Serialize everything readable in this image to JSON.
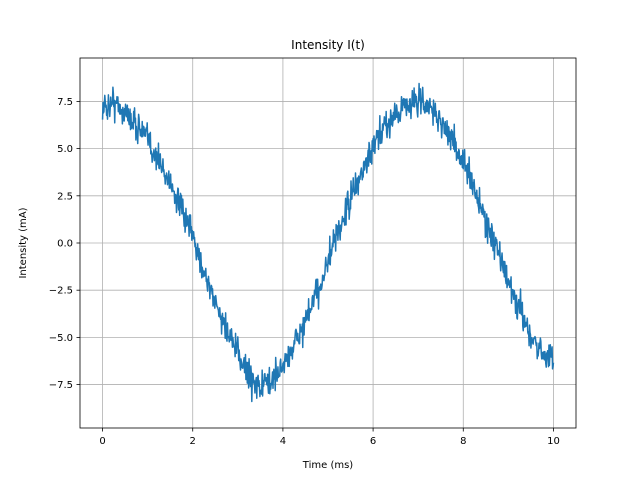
{
  "chart_data": {
    "type": "line",
    "title": "Intensity I(t)",
    "xlabel": "Time (ms)",
    "ylabel": "Intensity (mA)",
    "xlim": [
      -0.5,
      10.5
    ],
    "ylim": [
      -9.8,
      9.8
    ],
    "grid": true,
    "x_ticks": [
      0,
      2,
      4,
      6,
      8,
      10
    ],
    "x_tick_labels": [
      "0",
      "2",
      "4",
      "6",
      "8",
      "10"
    ],
    "y_ticks": [
      -7.5,
      -5.0,
      -2.5,
      0.0,
      2.5,
      5.0,
      7.5
    ],
    "y_tick_labels": [
      "−7.5",
      "−5.0",
      "−2.5",
      "0.0",
      "2.5",
      "5.0",
      "7.5"
    ],
    "colors": {
      "line": "#1f77b4",
      "grid": "#b0b0b0"
    },
    "series": [
      {
        "x": [
          0,
          0.25,
          0.5,
          0.75,
          1,
          1.25,
          1.5,
          1.75,
          2,
          2.25,
          2.5,
          2.75,
          3,
          3.25,
          3.5,
          3.75,
          4,
          4.25,
          4.5,
          4.75,
          5,
          5.25,
          5.5,
          5.75,
          6,
          6.25,
          6.5,
          6.75,
          7,
          7.25,
          7.5,
          7.75,
          8,
          8.25,
          8.5,
          8.75,
          9,
          9.25,
          9.5,
          9.75,
          10
        ],
        "y": [
          7.1,
          7.5,
          6.9,
          6.3,
          5.5,
          4.3,
          3.2,
          1.7,
          0.3,
          -1.5,
          -3.2,
          -4.6,
          -5.9,
          -7.0,
          -7.6,
          -7.3,
          -6.5,
          -5.4,
          -4.2,
          -2.7,
          -1.0,
          0.7,
          2.3,
          3.7,
          5.0,
          6.1,
          6.9,
          7.4,
          7.5,
          7.2,
          6.5,
          5.5,
          4.3,
          2.8,
          1.2,
          -0.4,
          -2.0,
          -3.6,
          -4.9,
          -5.8,
          -6.2
        ]
      }
    ]
  }
}
